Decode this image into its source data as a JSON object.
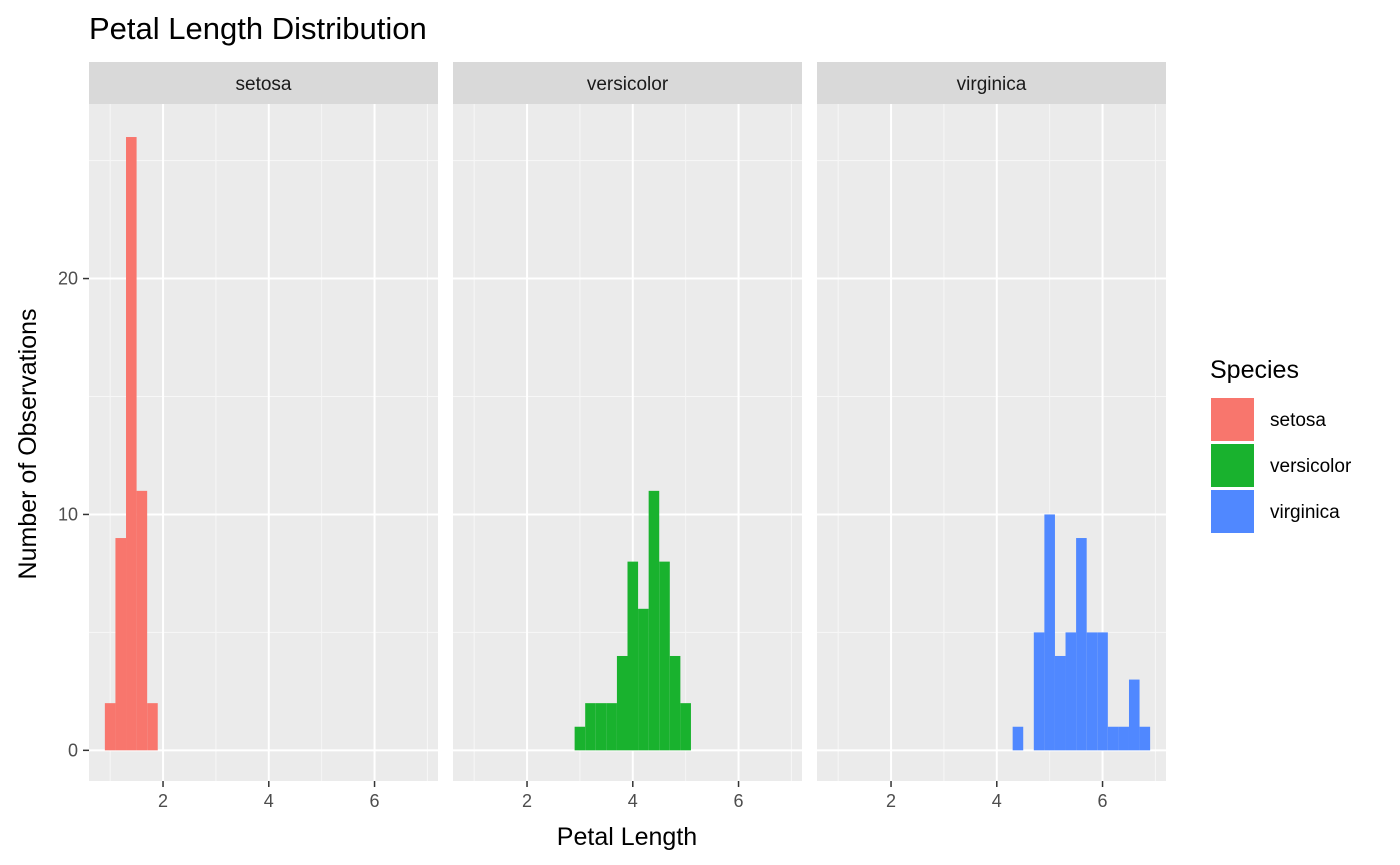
{
  "chart_data": {
    "type": "histogram",
    "title": "Petal Length Distribution",
    "xlabel": "Petal Length",
    "ylabel": "Number of Observations",
    "xlim": [
      0.6,
      7.2
    ],
    "ylim": [
      -1.3,
      27.4
    ],
    "x_ticks": [
      2,
      4,
      6
    ],
    "y_ticks": [
      0,
      10,
      20
    ],
    "bin_width": 0.2,
    "grid": true,
    "legend_position": "right",
    "legend_title": "Species",
    "facets": [
      {
        "name": "setosa",
        "color": "#F8766D",
        "bins": [
          {
            "x": 1.0,
            "count": 2
          },
          {
            "x": 1.2,
            "count": 9
          },
          {
            "x": 1.4,
            "count": 26
          },
          {
            "x": 1.6,
            "count": 11
          },
          {
            "x": 1.8,
            "count": 2
          }
        ]
      },
      {
        "name": "versicolor",
        "color": "#19B22E",
        "bins": [
          {
            "x": 3.0,
            "count": 1
          },
          {
            "x": 3.2,
            "count": 2
          },
          {
            "x": 3.4,
            "count": 2
          },
          {
            "x": 3.6,
            "count": 2
          },
          {
            "x": 3.8,
            "count": 4
          },
          {
            "x": 4.0,
            "count": 8
          },
          {
            "x": 4.2,
            "count": 6
          },
          {
            "x": 4.4,
            "count": 11
          },
          {
            "x": 4.6,
            "count": 8
          },
          {
            "x": 4.8,
            "count": 4
          },
          {
            "x": 5.0,
            "count": 2
          }
        ]
      },
      {
        "name": "virginica",
        "color": "#5088FF",
        "bins": [
          {
            "x": 4.4,
            "count": 1
          },
          {
            "x": 4.8,
            "count": 5
          },
          {
            "x": 5.0,
            "count": 10
          },
          {
            "x": 5.2,
            "count": 4
          },
          {
            "x": 5.4,
            "count": 5
          },
          {
            "x": 5.6,
            "count": 9
          },
          {
            "x": 5.8,
            "count": 5
          },
          {
            "x": 6.0,
            "count": 5
          },
          {
            "x": 6.2,
            "count": 1
          },
          {
            "x": 6.4,
            "count": 1
          },
          {
            "x": 6.6,
            "count": 3
          },
          {
            "x": 6.8,
            "count": 1
          }
        ]
      }
    ]
  }
}
